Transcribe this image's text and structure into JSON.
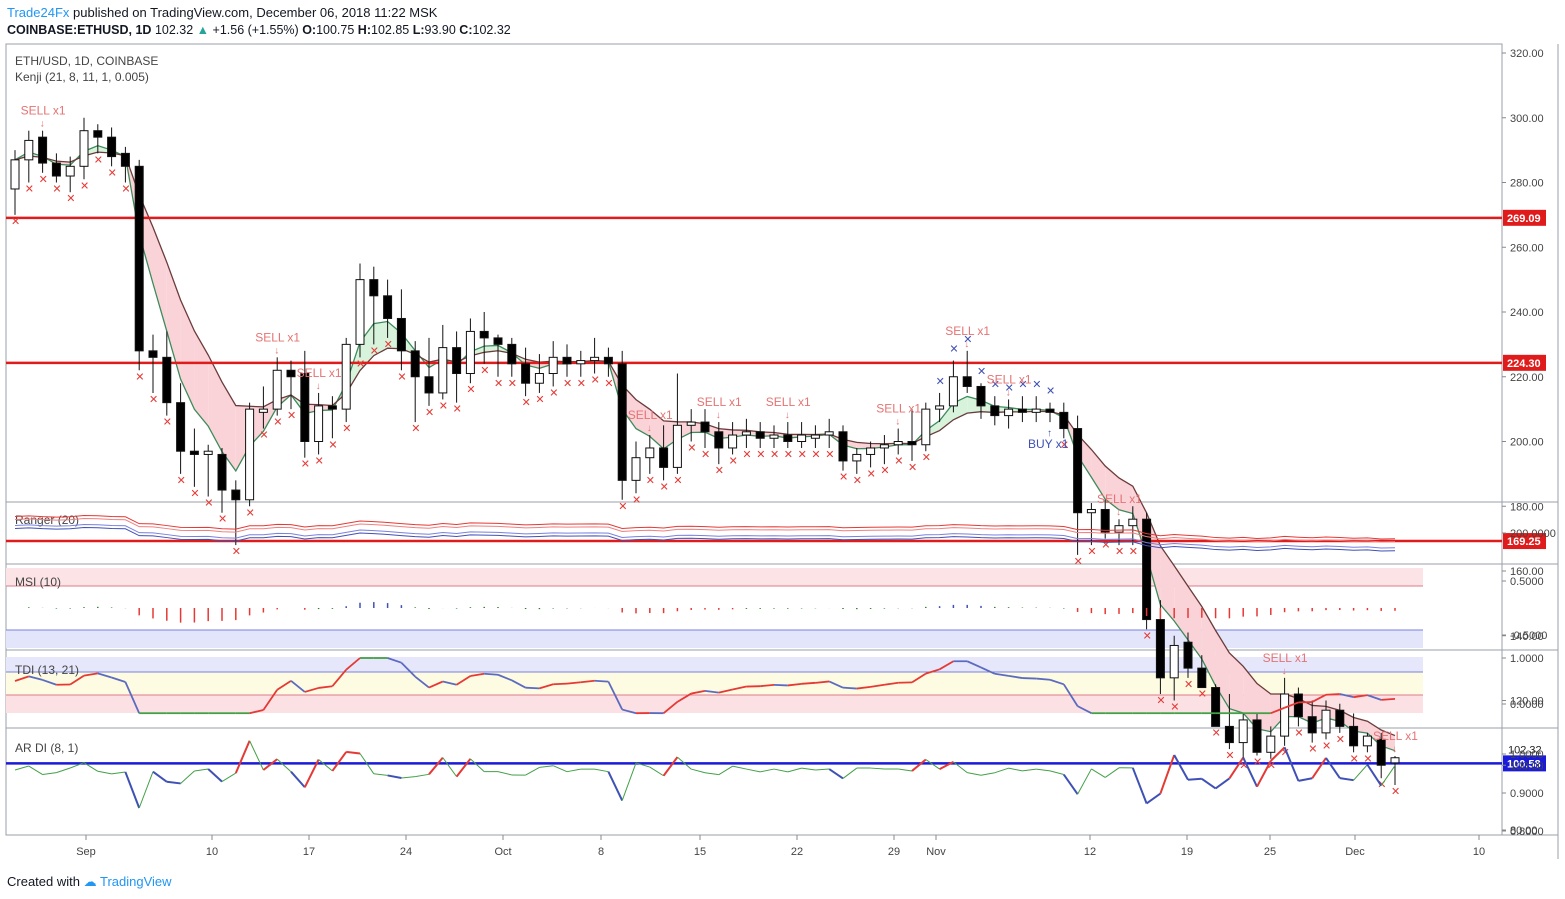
{
  "header": {
    "publisher": "Trade24Fx",
    "published_text": "published on TradingView.com, December 06, 2018 11:22 MSK",
    "symbol": "COINBASE:ETHUSD, 1D",
    "last": "102.32",
    "change": "+1.56 (+1.55%)",
    "open_label": "O:",
    "open": "100.75",
    "high_label": "H:",
    "high": "102.85",
    "low_label": "L:",
    "low": "93.90",
    "close_label": "C:",
    "close": "102.32"
  },
  "footer": {
    "created_with": "Created with",
    "brand": "TradingView"
  },
  "chart_data": {
    "type": "candlestick",
    "title": "ETH/USD, 1D, COINBASE",
    "indicator_label": "Kenji (21, 8, 11, 1, 0.005)",
    "ylim": [
      75,
      325
    ],
    "y_ticks": [
      "320.00",
      "300.00",
      "280.00",
      "260.00",
      "240.00",
      "220.00",
      "200.00",
      "180.00",
      "160.00",
      "140.00",
      "120.00",
      "100.00",
      "80.00"
    ],
    "x_ticks": [
      "Sep",
      "10",
      "17",
      "24",
      "Oct",
      "8",
      "15",
      "22",
      "29",
      "Nov",
      "12",
      "19",
      "25",
      "Dec",
      "10"
    ],
    "horizontal_levels": [
      {
        "value": 269.09,
        "label": "269.09",
        "color": "#e01b1b"
      },
      {
        "value": 224.3,
        "label": "224.30",
        "color": "#e01b1b"
      },
      {
        "value": 169.25,
        "label": "169.25",
        "color": "#e01b1b"
      },
      {
        "value": 100.58,
        "label": "100.58",
        "color": "#1a1ad8"
      }
    ],
    "price_label": {
      "value": 102.32,
      "label": "102.32"
    },
    "candles": [
      [
        278,
        290,
        270,
        287
      ],
      [
        287,
        296,
        280,
        293
      ],
      [
        294,
        296,
        283,
        286
      ],
      [
        286,
        289,
        280,
        282
      ],
      [
        282,
        288,
        277,
        285
      ],
      [
        285,
        300,
        281,
        296
      ],
      [
        296,
        298,
        289,
        294
      ],
      [
        294,
        297,
        285,
        288
      ],
      [
        289,
        291,
        280,
        285
      ],
      [
        285,
        287,
        222,
        228
      ],
      [
        228,
        233,
        215,
        226
      ],
      [
        226,
        234,
        208,
        212
      ],
      [
        212,
        218,
        190,
        197
      ],
      [
        197,
        204,
        186,
        196
      ],
      [
        196,
        199,
        183,
        197
      ],
      [
        196,
        198,
        178,
        185
      ],
      [
        185,
        188,
        168,
        182
      ],
      [
        182,
        212,
        180,
        210
      ],
      [
        209,
        217,
        204,
        210
      ],
      [
        210,
        226,
        208,
        222
      ],
      [
        222,
        225,
        210,
        220
      ],
      [
        221,
        228,
        195,
        200
      ],
      [
        200,
        215,
        196,
        211
      ],
      [
        211,
        214,
        201,
        210
      ],
      [
        210,
        232,
        206,
        230
      ],
      [
        230,
        255,
        226,
        250
      ],
      [
        250,
        254,
        230,
        245
      ],
      [
        245,
        250,
        232,
        238
      ],
      [
        238,
        247,
        222,
        228
      ],
      [
        228,
        231,
        206,
        220
      ],
      [
        220,
        232,
        211,
        215
      ],
      [
        215,
        236,
        213,
        229
      ],
      [
        229,
        234,
        212,
        221
      ],
      [
        221,
        238,
        218,
        234
      ],
      [
        234,
        240,
        224,
        232
      ],
      [
        232,
        233,
        220,
        230
      ],
      [
        230,
        232,
        220,
        224
      ],
      [
        224,
        229,
        214,
        218
      ],
      [
        218,
        227,
        215,
        221
      ],
      [
        221,
        231,
        217,
        226
      ],
      [
        226,
        230,
        220,
        224
      ],
      [
        224,
        228,
        220,
        225
      ],
      [
        225,
        232,
        221,
        226
      ],
      [
        226,
        229,
        220,
        224
      ],
      [
        224,
        228,
        182,
        188
      ],
      [
        188,
        200,
        184,
        195
      ],
      [
        195,
        202,
        190,
        198
      ],
      [
        198,
        205,
        188,
        192
      ],
      [
        192,
        221,
        190,
        205
      ],
      [
        205,
        210,
        200,
        206
      ],
      [
        206,
        210,
        198,
        203
      ],
      [
        203,
        206,
        193,
        198
      ],
      [
        198,
        206,
        196,
        202
      ],
      [
        202,
        207,
        198,
        203
      ],
      [
        203,
        206,
        198,
        201
      ],
      [
        201,
        205,
        198,
        202
      ],
      [
        202,
        206,
        198,
        200
      ],
      [
        200,
        206,
        198,
        202
      ],
      [
        201,
        205,
        198,
        202
      ],
      [
        202,
        207,
        198,
        203
      ],
      [
        203,
        205,
        191,
        194
      ],
      [
        194,
        198,
        190,
        196
      ],
      [
        196,
        200,
        192,
        198
      ],
      [
        198,
        202,
        193,
        199
      ],
      [
        199,
        204,
        196,
        200
      ],
      [
        200,
        210,
        194,
        199
      ],
      [
        199,
        212,
        197,
        210
      ],
      [
        210,
        215,
        206,
        211
      ],
      [
        211,
        225,
        209,
        220
      ],
      [
        220,
        228,
        215,
        217
      ],
      [
        217,
        218,
        207,
        211
      ],
      [
        211,
        214,
        205,
        208
      ],
      [
        208,
        213,
        204,
        210
      ],
      [
        210,
        214,
        206,
        209
      ],
      [
        209,
        214,
        206,
        210
      ],
      [
        210,
        212,
        206,
        209
      ],
      [
        209,
        212,
        201,
        204
      ],
      [
        204,
        208,
        165,
        178
      ],
      [
        178,
        181,
        168,
        179
      ],
      [
        179,
        182,
        170,
        172
      ],
      [
        172,
        176,
        168,
        174
      ],
      [
        174,
        180,
        168,
        176
      ],
      [
        176,
        178,
        142,
        145
      ],
      [
        145,
        151,
        122,
        127
      ],
      [
        127,
        140,
        120,
        137
      ],
      [
        138,
        141,
        127,
        130
      ],
      [
        130,
        134,
        124,
        124
      ],
      [
        124,
        125,
        112,
        112
      ],
      [
        112,
        122,
        105,
        107
      ],
      [
        107,
        116,
        102,
        114
      ],
      [
        114,
        116,
        103,
        104
      ],
      [
        104,
        112,
        102,
        109
      ],
      [
        109,
        127,
        106,
        122
      ],
      [
        122,
        124,
        112,
        115
      ],
      [
        115,
        120,
        107,
        110
      ],
      [
        110,
        120,
        108,
        117
      ],
      [
        117,
        119,
        110,
        112
      ],
      [
        112,
        116,
        104,
        106
      ],
      [
        106,
        110,
        104,
        109
      ],
      [
        108,
        110,
        96,
        100
      ],
      [
        100.75,
        102.85,
        93.9,
        102.32
      ]
    ],
    "signals": [
      {
        "label": "SELL x1",
        "color": "#e57373"
      },
      {
        "label": "SELL x1",
        "color": "#e57373"
      },
      {
        "label": "SELL x1",
        "color": "#e57373"
      },
      {
        "label": "SELL x1",
        "color": "#e57373"
      },
      {
        "label": "SELL x1",
        "color": "#e57373"
      },
      {
        "label": "SELL x1",
        "color": "#e57373"
      },
      {
        "label": "SELL x1",
        "color": "#e57373"
      },
      {
        "label": "SELL x1",
        "color": "#e57373"
      },
      {
        "label": "SELL x1",
        "color": "#e57373"
      },
      {
        "label": "SELL x1",
        "color": "#e57373"
      },
      {
        "label": "BUY x1",
        "color": "#3f51b5"
      },
      {
        "label": "SELL x1",
        "color": "#e57373"
      },
      {
        "label": "SELL x1",
        "color": "#e57373"
      }
    ],
    "panes": [
      {
        "name": "Ranger (20)",
        "ticks": [
          "200.0000"
        ]
      },
      {
        "name": "MSI (10)",
        "ticks": [
          "0.5000",
          "-0.5000"
        ]
      },
      {
        "name": "TDI (13, 21)",
        "ticks": [
          "1.0000",
          "0.0000"
        ]
      },
      {
        "name": "AR DI (8, 1)",
        "ticks": [
          "1.0000",
          "0.9000",
          "0.8000"
        ]
      }
    ],
    "colors": {
      "up": "#ffffff",
      "down": "#000000",
      "sell": "#e53935",
      "buy": "#3f51b5",
      "level_red": "#e01b1b",
      "level_blue": "#1a1ad8"
    }
  }
}
